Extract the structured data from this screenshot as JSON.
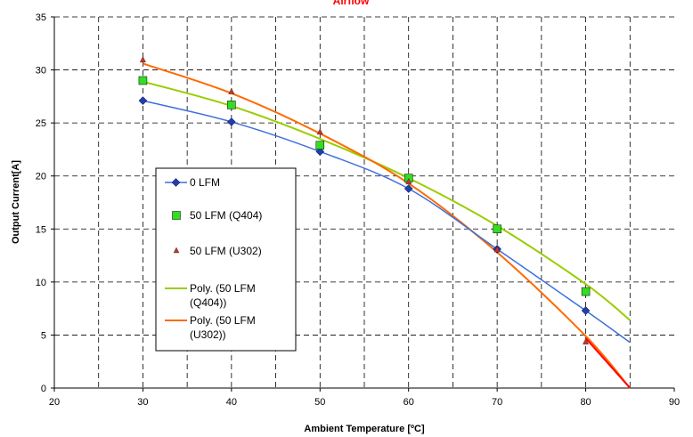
{
  "chart_data": {
    "type": "scatter",
    "title": "Airflow",
    "title_color": "#ff0000",
    "xlabel": "Ambient Temperature [ºC]",
    "ylabel": "Output Current[A]",
    "xlim": [
      20,
      90
    ],
    "ylim": [
      0,
      35
    ],
    "x_ticks": [
      20,
      30,
      40,
      50,
      60,
      70,
      80,
      90
    ],
    "y_ticks": [
      0,
      5,
      10,
      15,
      20,
      25,
      30,
      35
    ],
    "x_tick_labels": [
      "20",
      "30",
      "40",
      "50",
      "60",
      "70",
      "80",
      "90"
    ],
    "y_tick_labels": [
      "0",
      "5",
      "10",
      "15",
      "20",
      "25",
      "30",
      "35"
    ],
    "grid": true,
    "grid_style": "dashed",
    "legend_position": "left-center",
    "series": [
      {
        "name": "0 LFM",
        "kind": "line-marker",
        "marker": "diamond",
        "color": "#3f6fdc",
        "marker_color": "#1f3fb0",
        "x": [
          30,
          40,
          50,
          60,
          70,
          80,
          85
        ],
        "y": [
          27.1,
          25.1,
          22.3,
          18.8,
          13.1,
          7.3,
          4.3
        ]
      },
      {
        "name": "50 LFM (Q404)",
        "kind": "marker",
        "marker": "square",
        "marker_color": "#33dd22",
        "x": [
          30,
          40,
          50,
          60,
          70,
          80
        ],
        "y": [
          29.0,
          26.7,
          22.9,
          19.8,
          15.0,
          9.1
        ]
      },
      {
        "name": "50 LFM (U302)",
        "kind": "marker",
        "marker": "triangle",
        "marker_color": "#c0392b",
        "x": [
          30,
          40,
          50,
          60,
          70,
          80
        ],
        "y": [
          31.0,
          28.0,
          24.2,
          19.5,
          13.1,
          4.4
        ]
      },
      {
        "name": "Poly. (50 LFM (Q404))",
        "legend_lines": [
          "Poly. (50 LFM",
          "(Q404))"
        ],
        "kind": "line",
        "color": "#9acd00",
        "x": [
          30,
          40,
          50,
          60,
          70,
          80,
          85
        ],
        "y": [
          28.9,
          26.6,
          23.5,
          19.8,
          15.3,
          9.8,
          6.4
        ]
      },
      {
        "name": "Poly. (50 LFM (U302))",
        "legend_lines": [
          "Poly. (50 LFM",
          "(U302))"
        ],
        "kind": "line",
        "color": "#ff6a00",
        "x": [
          30,
          40,
          50,
          60,
          70,
          80,
          85
        ],
        "y": [
          30.6,
          27.8,
          24.0,
          19.3,
          12.8,
          4.9,
          0.0
        ]
      }
    ],
    "extra_lines": [
      {
        "color": "#ff0000",
        "x": [
          80,
          85
        ],
        "y": [
          4.7,
          0.0
        ]
      }
    ]
  }
}
